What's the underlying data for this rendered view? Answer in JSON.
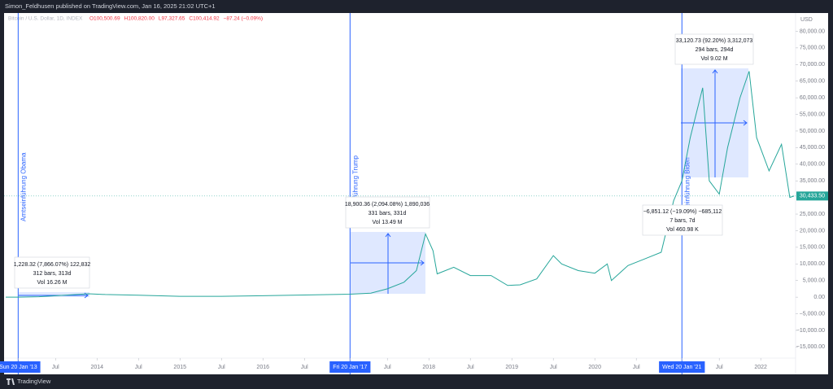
{
  "header": {
    "publisher": "Simon_Feldhusen published on TradingView.com, Jan 16, 2025 21:02 UTC+1",
    "brand": "TradingView"
  },
  "chart_data": {
    "type": "line",
    "title": "Bitcoin / U.S. Dollar, 1D, INDEX",
    "ohlc": [
      "O100,500.69",
      "H100,820.00",
      "L97,327.65",
      "C100,414.92",
      "−87.24 (−0.09%)"
    ],
    "currency": "USD",
    "color": "#26a69a",
    "grid": false,
    "x": [
      2012.9,
      2013.05,
      2013.3,
      2013.9,
      2014.1,
      2014.5,
      2015.0,
      2015.5,
      2016.0,
      2016.5,
      2017.05,
      2017.3,
      2017.5,
      2017.7,
      2017.85,
      2017.96,
      2018.05,
      2018.1,
      2018.3,
      2018.5,
      2018.75,
      2018.95,
      2019.1,
      2019.3,
      2019.5,
      2019.6,
      2019.8,
      2020.0,
      2020.15,
      2020.2,
      2020.4,
      2020.6,
      2020.8,
      2020.95,
      2021.05,
      2021.15,
      2021.3,
      2021.38,
      2021.5,
      2021.6,
      2021.75,
      2021.86,
      2021.95,
      2022.1,
      2022.25,
      2022.35,
      2022.4
    ],
    "values": [
      12,
      15,
      130,
      1000,
      800,
      600,
      250,
      250,
      430,
      650,
      900,
      1200,
      2500,
      4500,
      8000,
      19000,
      14000,
      7000,
      9000,
      6500,
      6500,
      3500,
      3700,
      5500,
      12500,
      10000,
      8000,
      7200,
      10000,
      5000,
      9500,
      11500,
      13500,
      29000,
      35000,
      48000,
      63000,
      35000,
      31000,
      45000,
      60000,
      68000,
      48000,
      38000,
      46000,
      30000,
      30433.5
    ],
    "last_price": {
      "value": 30433.5,
      "label": "30,433.50"
    },
    "xlim": [
      2012.88,
      2022.42
    ],
    "xticks": [
      {
        "value": 2013.05,
        "label": "Sun 20 Jan '13"
      },
      {
        "value": 2013.5,
        "label": "Jul"
      },
      2014,
      {
        "value": 2014.5,
        "label": "Jul"
      },
      2015,
      {
        "value": 2015.5,
        "label": "Jul"
      },
      2016,
      {
        "value": 2016.5,
        "label": "Jul"
      },
      {
        "value": 2017.05,
        "label": "Fri 20 Jan '17"
      },
      {
        "value": 2017.5,
        "label": "Jul"
      },
      2018,
      {
        "value": 2018.5,
        "label": "Jul"
      },
      2019,
      {
        "value": 2019.5,
        "label": "Jul"
      },
      2020,
      {
        "value": 2020.5,
        "label": "Jul"
      },
      {
        "value": 2021.05,
        "label": "Wed 20 Jan '21"
      },
      {
        "value": 2021.5,
        "label": "Jul"
      },
      2022
    ],
    "ylim": [
      -17600,
      85500
    ],
    "yticks": [
      {
        "value": 80000,
        "label": "80,000.00"
      },
      {
        "value": 75000,
        "label": "75,000.00"
      },
      {
        "value": 70000,
        "label": "70,000.00"
      },
      {
        "value": 65000,
        "label": "65,000.00"
      },
      {
        "value": 60000,
        "label": "60,000.00"
      },
      {
        "value": 55000,
        "label": "55,000.00"
      },
      {
        "value": 50000,
        "label": "50,000.00"
      },
      {
        "value": 45000,
        "label": "45,000.00"
      },
      {
        "value": 40000,
        "label": "40,000.00"
      },
      {
        "value": 35000,
        "label": "35,000.00"
      },
      {
        "value": 25000,
        "label": "25,000.00"
      },
      {
        "value": 20000,
        "label": "20,000.00"
      },
      {
        "value": 15000,
        "label": "15,000.00"
      },
      {
        "value": 10000,
        "label": "10,000.00"
      },
      {
        "value": 5000,
        "label": "5,000.00"
      },
      {
        "value": 0,
        "label": "0.00"
      },
      {
        "value": -5000,
        "label": "−5,000.00"
      },
      {
        "value": -10000,
        "label": "−10,000.00"
      },
      {
        "value": -15000,
        "label": "−15,000.00"
      }
    ],
    "vlines": [
      {
        "x": 2013.05,
        "label": "Amtseinführung Obama"
      },
      {
        "x": 2017.05,
        "label": "Amtseinführung Trump"
      },
      {
        "x": 2021.05,
        "label": "Amtseinführung Biden"
      }
    ],
    "measures": [
      {
        "lines": [
          "1,228.32 (7,866.07%) 122,832",
          "312 bars, 313d",
          "Vol 16.26 M"
        ]
      },
      {
        "lines": [
          "18,900.36 (2,094.08%) 1,890,036",
          "331 bars, 331d",
          "Vol 13.49 M"
        ]
      },
      {
        "lines": [
          "−6,851.12 (−19.09%) −685,112",
          "7 bars, 7d",
          "Vol 460.98 K"
        ]
      },
      {
        "lines": [
          "33,120.73 (92.20%) 3,312,073",
          "294 bars, 294d",
          "Vol 9.02 M"
        ]
      }
    ]
  }
}
